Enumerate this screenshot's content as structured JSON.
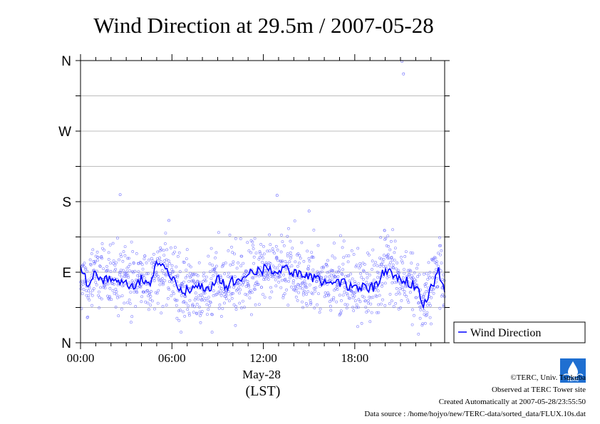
{
  "chart_data": {
    "type": "scatter",
    "title": "Wind Direction at 29.5m / 2007-05-28",
    "xlabel": "(LST)",
    "x_date_label": "May-28",
    "ylabel": "",
    "x_unit": "hour",
    "xlim": [
      0,
      23.9
    ],
    "ylim": [
      0,
      360
    ],
    "x_ticks": [
      {
        "value": 0,
        "label": "00:00"
      },
      {
        "value": 6,
        "label": "06:00"
      },
      {
        "value": 12,
        "label": "12:00"
      },
      {
        "value": 18,
        "label": "18:00"
      }
    ],
    "y_ticks": [
      {
        "value": 0,
        "label": "N"
      },
      {
        "value": 90,
        "label": "E"
      },
      {
        "value": 180,
        "label": "S"
      },
      {
        "value": 270,
        "label": "W"
      },
      {
        "value": 360,
        "label": "N"
      }
    ],
    "grid": true,
    "legend": {
      "position": "right",
      "entries": [
        "Wind Direction"
      ]
    },
    "series": [
      {
        "name": "Wind Direction",
        "color": "#0000ff",
        "x": [
          0.0,
          0.5,
          1.0,
          1.5,
          2.0,
          2.5,
          3.0,
          3.5,
          4.0,
          4.5,
          5.0,
          5.5,
          6.0,
          6.5,
          7.0,
          7.5,
          8.0,
          8.5,
          9.0,
          9.5,
          10.0,
          10.5,
          11.0,
          11.5,
          12.0,
          12.5,
          13.0,
          13.5,
          14.0,
          14.5,
          15.0,
          15.5,
          16.0,
          16.5,
          17.0,
          17.5,
          18.0,
          18.5,
          19.0,
          19.5,
          20.0,
          20.5,
          21.0,
          21.5,
          22.0,
          22.5,
          23.0,
          23.5,
          23.9
        ],
        "y": [
          92,
          76,
          88,
          80,
          80,
          78,
          76,
          74,
          80,
          70,
          104,
          92,
          82,
          64,
          68,
          70,
          72,
          70,
          86,
          72,
          78,
          82,
          86,
          90,
          94,
          93,
          92,
          92,
          90,
          86,
          82,
          80,
          78,
          82,
          78,
          74,
          70,
          72,
          68,
          74,
          94,
          88,
          80,
          78,
          72,
          48,
          70,
          90,
          68
        ]
      },
      {
        "name": "",
        "type": "scatter",
        "color": "#6666ff",
        "x": [
          2.6,
          5.8,
          12.9,
          15.0,
          21.1,
          21.2
        ],
        "y": [
          189,
          156,
          188,
          168,
          359,
          343
        ]
      }
    ]
  },
  "legend_label": "Wind Direction",
  "credits": {
    "copyright": "©TERC, Univ. Tsukuba",
    "observed": "Observed at TERC Tower site",
    "created": "Created Automatically at 2007-05-28/23:55:50",
    "source": "Data source : /home/hojyo/new/TERC-data/sorted_data/FLUX.10s.dat"
  },
  "logo_text": "TERC"
}
